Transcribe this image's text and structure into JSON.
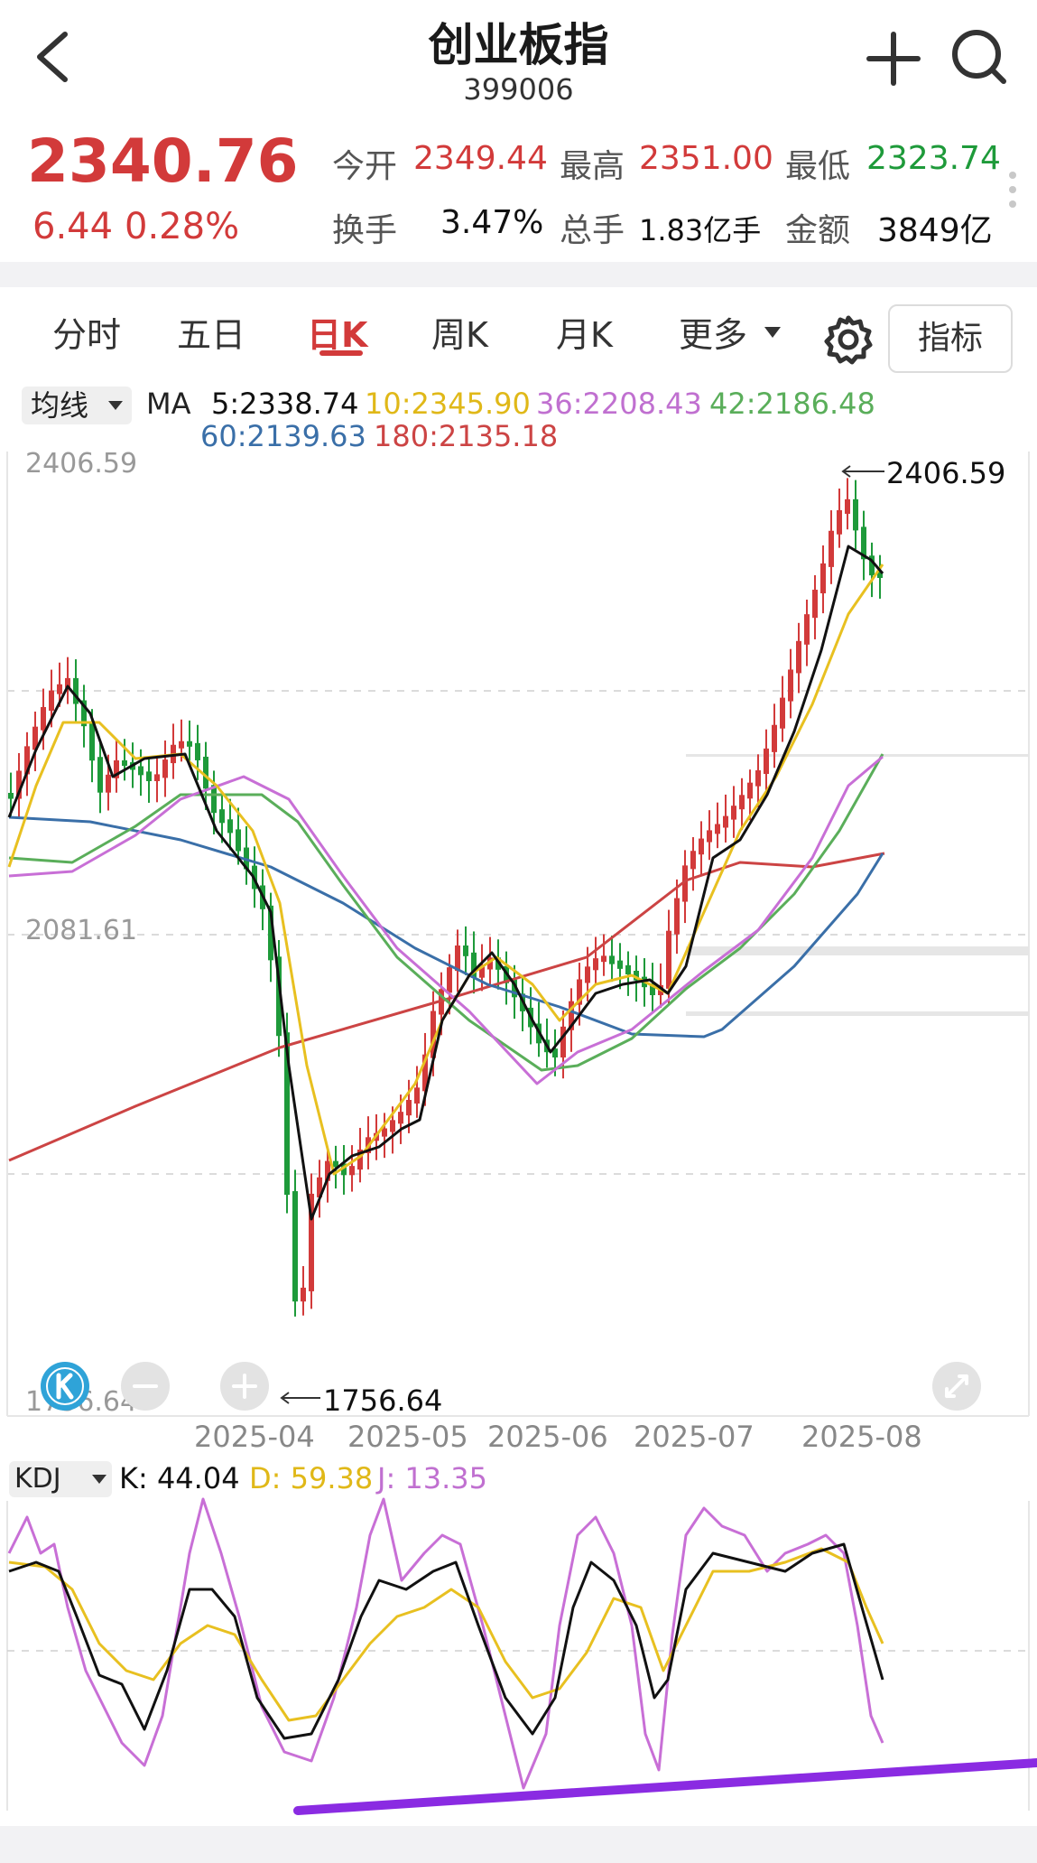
{
  "header": {
    "title": "创业板指",
    "code": "399006"
  },
  "quote": {
    "price": "2340.76",
    "change": "6.44",
    "change_pct": "0.28%",
    "open_label": "今开",
    "open": "2349.44",
    "high_label": "最高",
    "high": "2351.00",
    "low_label": "最低",
    "low": "2323.74",
    "turnover_label": "换手",
    "turnover": "3.47%",
    "volume_label": "总手",
    "volume": "1.83亿手",
    "amount_label": "金额",
    "amount": "3849亿"
  },
  "tabs": [
    {
      "label": "分时"
    },
    {
      "label": "五日"
    },
    {
      "label": "日K"
    },
    {
      "label": "周K"
    },
    {
      "label": "月K"
    },
    {
      "label": "更多"
    }
  ],
  "indicator_button": "指标",
  "ma_legend": {
    "selector": "均线",
    "title": "MA",
    "ma5": "5:2338.74",
    "ma10": "10:2345.90",
    "ma36": "36:2208.43",
    "ma42": "42:2186.48",
    "ma60": "60:2139.63",
    "ma180": "180:2135.18"
  },
  "price_axis": {
    "top": "2406.59",
    "mid": "2081.61",
    "bottom": "1756.64",
    "max_marker": "2406.59",
    "min_marker": "1756.64"
  },
  "date_axis": [
    "2025-04",
    "2025-05",
    "2025-06",
    "2025-07",
    "2025-08"
  ],
  "kdj_legend": {
    "selector": "KDJ",
    "k": "K: 44.04",
    "d": "D: 59.38",
    "j": "J: 13.35"
  },
  "colors": {
    "up": "#d23a3a",
    "down": "#1e9a3a",
    "ma5": "#111111",
    "ma10": "#e8c020",
    "ma36": "#c86fd6",
    "ma42": "#5aae5a",
    "ma60": "#3a6fa8",
    "ma180": "#cc4444",
    "trend": "#8a2be2"
  },
  "icons": [
    "back-arrow-icon",
    "plus-icon",
    "search-icon",
    "settings-gear-icon",
    "dropdown-caret-icon",
    "k-logo-icon",
    "zoom-out-icon",
    "zoom-in-icon",
    "fullscreen-icon",
    "more-dots-icon"
  ]
}
